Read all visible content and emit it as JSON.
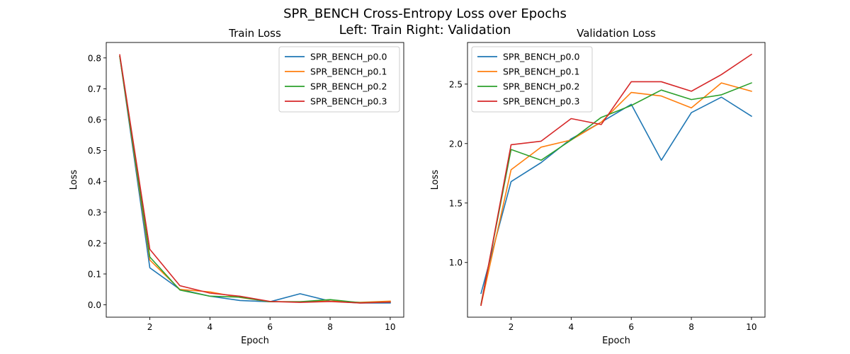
{
  "figure": {
    "title_line1": "SPR_BENCH Cross-Entropy Loss over Epochs",
    "title_line2": "Left: Train  Right: Validation"
  },
  "colors": {
    "SPR_BENCH_p0.0": "#1f77b4",
    "SPR_BENCH_p0.1": "#ff7f0e",
    "SPR_BENCH_p0.2": "#2ca02c",
    "SPR_BENCH_p0.3": "#d62728"
  },
  "chart_data": [
    {
      "type": "line",
      "title": "Train Loss",
      "xlabel": "Epoch",
      "ylabel": "Loss",
      "xlim": [
        0.55,
        10.45
      ],
      "ylim": [
        -0.04,
        0.85
      ],
      "xticks": [
        2,
        4,
        6,
        8,
        10
      ],
      "yticks": [
        0.0,
        0.1,
        0.2,
        0.3,
        0.4,
        0.5,
        0.6,
        0.7,
        0.8
      ],
      "ytick_labels": [
        "0.0",
        "0.1",
        "0.2",
        "0.3",
        "0.4",
        "0.5",
        "0.6",
        "0.7",
        "0.8"
      ],
      "legend_position": "top-right",
      "grid": false,
      "x": [
        1,
        2,
        3,
        4,
        5,
        6,
        7,
        8,
        9,
        10
      ],
      "series": [
        {
          "name": "SPR_BENCH_p0.0",
          "values": [
            0.805,
            0.12,
            0.05,
            0.028,
            0.014,
            0.01,
            0.036,
            0.012,
            0.006,
            0.006
          ]
        },
        {
          "name": "SPR_BENCH_p0.1",
          "values": [
            0.805,
            0.145,
            0.05,
            0.042,
            0.024,
            0.01,
            0.01,
            0.012,
            0.008,
            0.012
          ]
        },
        {
          "name": "SPR_BENCH_p0.2",
          "values": [
            0.805,
            0.155,
            0.048,
            0.028,
            0.025,
            0.01,
            0.01,
            0.017,
            0.007,
            0.009
          ]
        },
        {
          "name": "SPR_BENCH_p0.3",
          "values": [
            0.81,
            0.18,
            0.062,
            0.038,
            0.028,
            0.011,
            0.008,
            0.011,
            0.006,
            0.009
          ]
        }
      ]
    },
    {
      "type": "line",
      "title": "Validation Loss",
      "xlabel": "Epoch",
      "ylabel": "Loss",
      "xlim": [
        0.55,
        10.45
      ],
      "ylim": [
        0.54,
        2.85
      ],
      "xticks": [
        2,
        4,
        6,
        8,
        10
      ],
      "yticks": [
        1.0,
        1.5,
        2.0,
        2.5
      ],
      "ytick_labels": [
        "1.0",
        "1.5",
        "2.0",
        "2.5"
      ],
      "legend_position": "top-left",
      "grid": false,
      "x": [
        1,
        2,
        3,
        4,
        5,
        6,
        7,
        8,
        9,
        10
      ],
      "series": [
        {
          "name": "SPR_BENCH_p0.0",
          "values": [
            0.74,
            1.68,
            1.84,
            2.04,
            2.18,
            2.33,
            1.86,
            2.26,
            2.39,
            2.23
          ]
        },
        {
          "name": "SPR_BENCH_p0.1",
          "values": [
            0.64,
            1.78,
            1.97,
            2.03,
            2.18,
            2.43,
            2.4,
            2.3,
            2.51,
            2.44
          ]
        },
        {
          "name": "SPR_BENCH_p0.2",
          "values": [
            0.65,
            1.95,
            1.86,
            2.03,
            2.22,
            2.32,
            2.45,
            2.37,
            2.41,
            2.51
          ]
        },
        {
          "name": "SPR_BENCH_p0.3",
          "values": [
            0.64,
            1.99,
            2.02,
            2.21,
            2.16,
            2.52,
            2.52,
            2.44,
            2.58,
            2.75
          ]
        }
      ]
    }
  ]
}
